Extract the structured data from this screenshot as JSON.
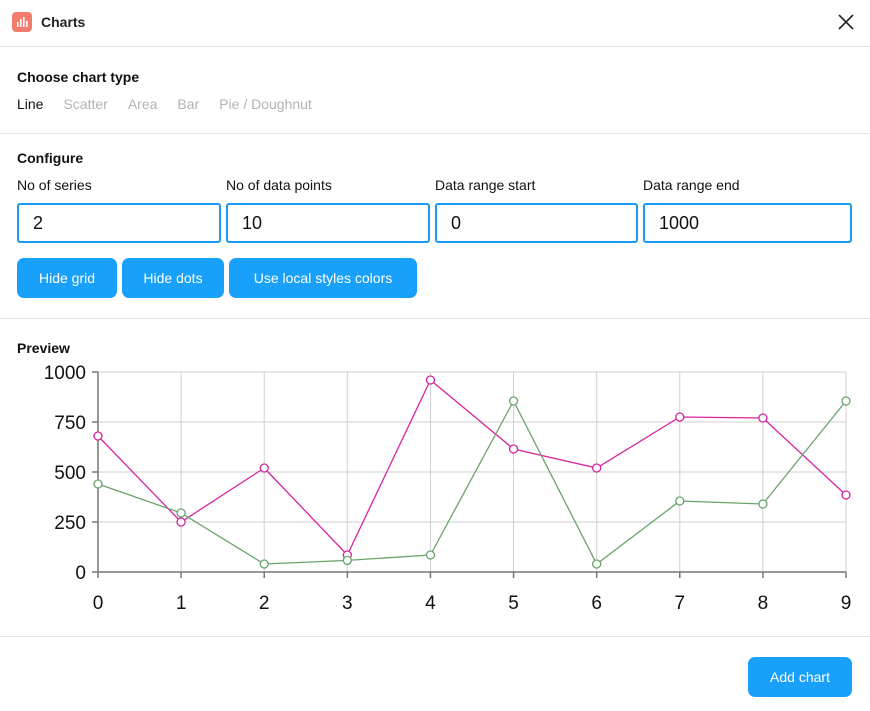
{
  "header": {
    "title": "Charts",
    "app_icon": "bar-chart-icon",
    "close_icon": "close-icon"
  },
  "chart_type": {
    "heading": "Choose chart type",
    "options": [
      "Line",
      "Scatter",
      "Area",
      "Bar",
      "Pie / Doughnut"
    ],
    "selected": "Line"
  },
  "configure": {
    "heading": "Configure",
    "fields": [
      {
        "label": "No of series",
        "value": "2"
      },
      {
        "label": "No of data points",
        "value": "10"
      },
      {
        "label": "Data range start",
        "value": "0"
      },
      {
        "label": "Data range end",
        "value": "1000"
      }
    ],
    "buttons": [
      "Hide grid",
      "Hide dots",
      "Use local styles colors"
    ]
  },
  "preview": {
    "heading": "Preview"
  },
  "chart_data": {
    "type": "line",
    "x": [
      0,
      1,
      2,
      3,
      4,
      5,
      6,
      7,
      8,
      9
    ],
    "x_tick_labels": [
      "0",
      "1",
      "2",
      "3",
      "4",
      "5",
      "6",
      "7",
      "8",
      "9"
    ],
    "y_tick_labels": [
      "0",
      "250",
      "500",
      "750",
      "1000"
    ],
    "ylim": [
      0,
      1000
    ],
    "grid": true,
    "dots": true,
    "series": [
      {
        "color": "#d6249f",
        "values": [
          680,
          250,
          520,
          85,
          960,
          615,
          520,
          775,
          770,
          385
        ]
      },
      {
        "color": "#6aa36a",
        "values": [
          440,
          295,
          40,
          58,
          85,
          855,
          40,
          355,
          340,
          855
        ]
      }
    ]
  },
  "footer": {
    "add_button": "Add chart"
  },
  "colors": {
    "accent": "#18a0fb",
    "app_icon_bg": "#f47c6c"
  }
}
